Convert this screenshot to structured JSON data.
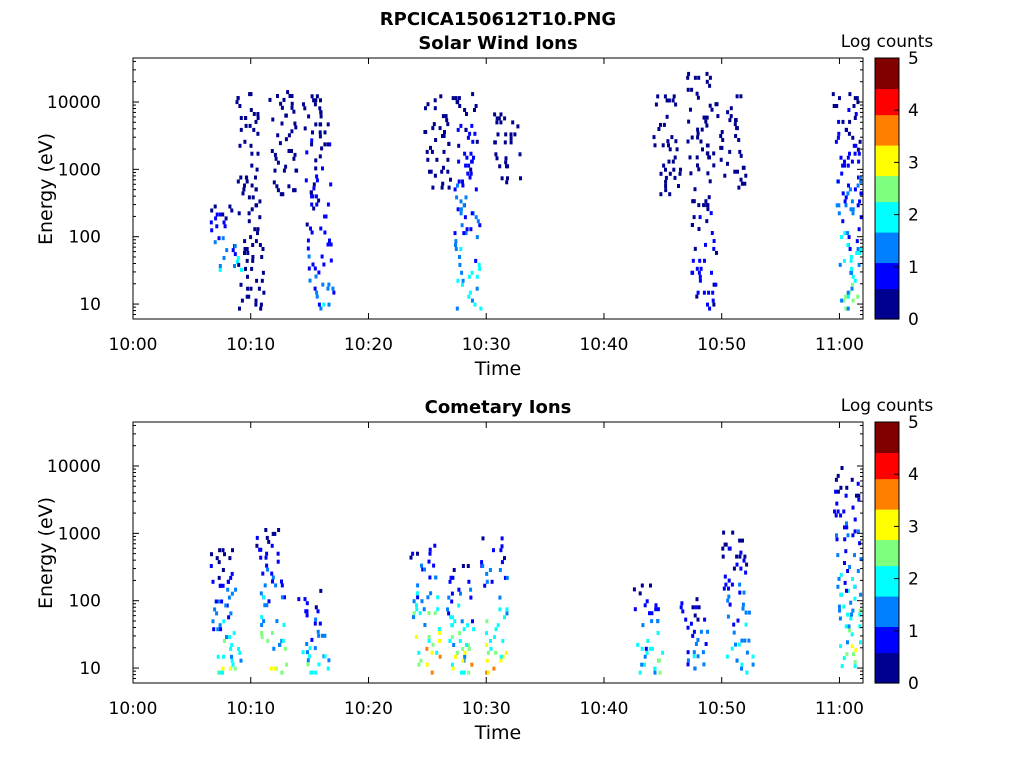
{
  "figure_title": "RPCICA150612T10.PNG",
  "colorbar_label": "Log counts",
  "colormap": [
    "#00008f",
    "#0000ff",
    "#007fff",
    "#00ffff",
    "#7fff7f",
    "#ffff00",
    "#ff7f00",
    "#ff0000",
    "#800000"
  ],
  "chart_data": [
    {
      "type": "heatmap",
      "title": "Solar Wind Ions",
      "xlabel": "Time",
      "ylabel": "Energy (eV)",
      "x_ticks": [
        "10:00",
        "10:10",
        "10:20",
        "10:30",
        "10:40",
        "10:50",
        "11:00"
      ],
      "y_ticks": [
        10,
        100,
        1000,
        10000
      ],
      "y_scale": "log",
      "ylim": [
        6,
        45000
      ],
      "xlim": [
        "10:00",
        "11:02"
      ],
      "clim": [
        0,
        5
      ],
      "colorbar_ticks": [
        0,
        1,
        2,
        3,
        4,
        5
      ],
      "bursts": [
        {
          "t": "10:08",
          "e_min": 30,
          "e_max": 300,
          "peak": 2.0
        },
        {
          "t": "10:10",
          "e_min": 8,
          "e_max": 14000,
          "peak": 0.5
        },
        {
          "t": "10:13",
          "e_min": 400,
          "e_max": 15000,
          "peak": 0.4
        },
        {
          "t": "10:16",
          "e_min": 8,
          "e_max": 13000,
          "peak": 1.6
        },
        {
          "t": "10:26",
          "e_min": 500,
          "e_max": 13000,
          "peak": 0.4
        },
        {
          "t": "10:28.5",
          "e_min": 8,
          "e_max": 14000,
          "peak": 2.2
        },
        {
          "t": "10:32",
          "e_min": 600,
          "e_max": 7000,
          "peak": 0.4
        },
        {
          "t": "10:45.5",
          "e_min": 400,
          "e_max": 13000,
          "peak": 0.4
        },
        {
          "t": "10:48.5",
          "e_min": 8,
          "e_max": 28000,
          "peak": 0.9
        },
        {
          "t": "10:51",
          "e_min": 500,
          "e_max": 13000,
          "peak": 0.4
        },
        {
          "t": "11:01",
          "e_min": 8,
          "e_max": 14000,
          "peak": 2.4
        }
      ]
    },
    {
      "type": "heatmap",
      "title": "Cometary Ions",
      "xlabel": "Time",
      "ylabel": "Energy (eV)",
      "x_ticks": [
        "10:00",
        "10:10",
        "10:20",
        "10:30",
        "10:40",
        "10:50",
        "11:00"
      ],
      "y_ticks": [
        10,
        100,
        1000,
        10000
      ],
      "y_scale": "log",
      "ylim": [
        6,
        45000
      ],
      "xlim": [
        "10:00",
        "11:02"
      ],
      "clim": [
        0,
        5
      ],
      "colorbar_ticks": [
        0,
        1,
        2,
        3,
        4,
        5
      ],
      "bursts": [
        {
          "t": "10:08",
          "e_min": 8,
          "e_max": 600,
          "peak": 2.8
        },
        {
          "t": "10:12",
          "e_min": 8,
          "e_max": 1200,
          "peak": 3.0
        },
        {
          "t": "10:15.5",
          "e_min": 8,
          "e_max": 150,
          "peak": 2.6
        },
        {
          "t": "10:25",
          "e_min": 8,
          "e_max": 700,
          "peak": 3.8
        },
        {
          "t": "10:28",
          "e_min": 8,
          "e_max": 350,
          "peak": 3.3
        },
        {
          "t": "10:31",
          "e_min": 8,
          "e_max": 900,
          "peak": 3.4
        },
        {
          "t": "10:44",
          "e_min": 8,
          "e_max": 180,
          "peak": 2.6
        },
        {
          "t": "10:48",
          "e_min": 8,
          "e_max": 130,
          "peak": 2.0
        },
        {
          "t": "10:51.5",
          "e_min": 8,
          "e_max": 1100,
          "peak": 2.4
        },
        {
          "t": "11:01",
          "e_min": 10,
          "e_max": 10000,
          "peak": 2.8
        }
      ]
    }
  ]
}
